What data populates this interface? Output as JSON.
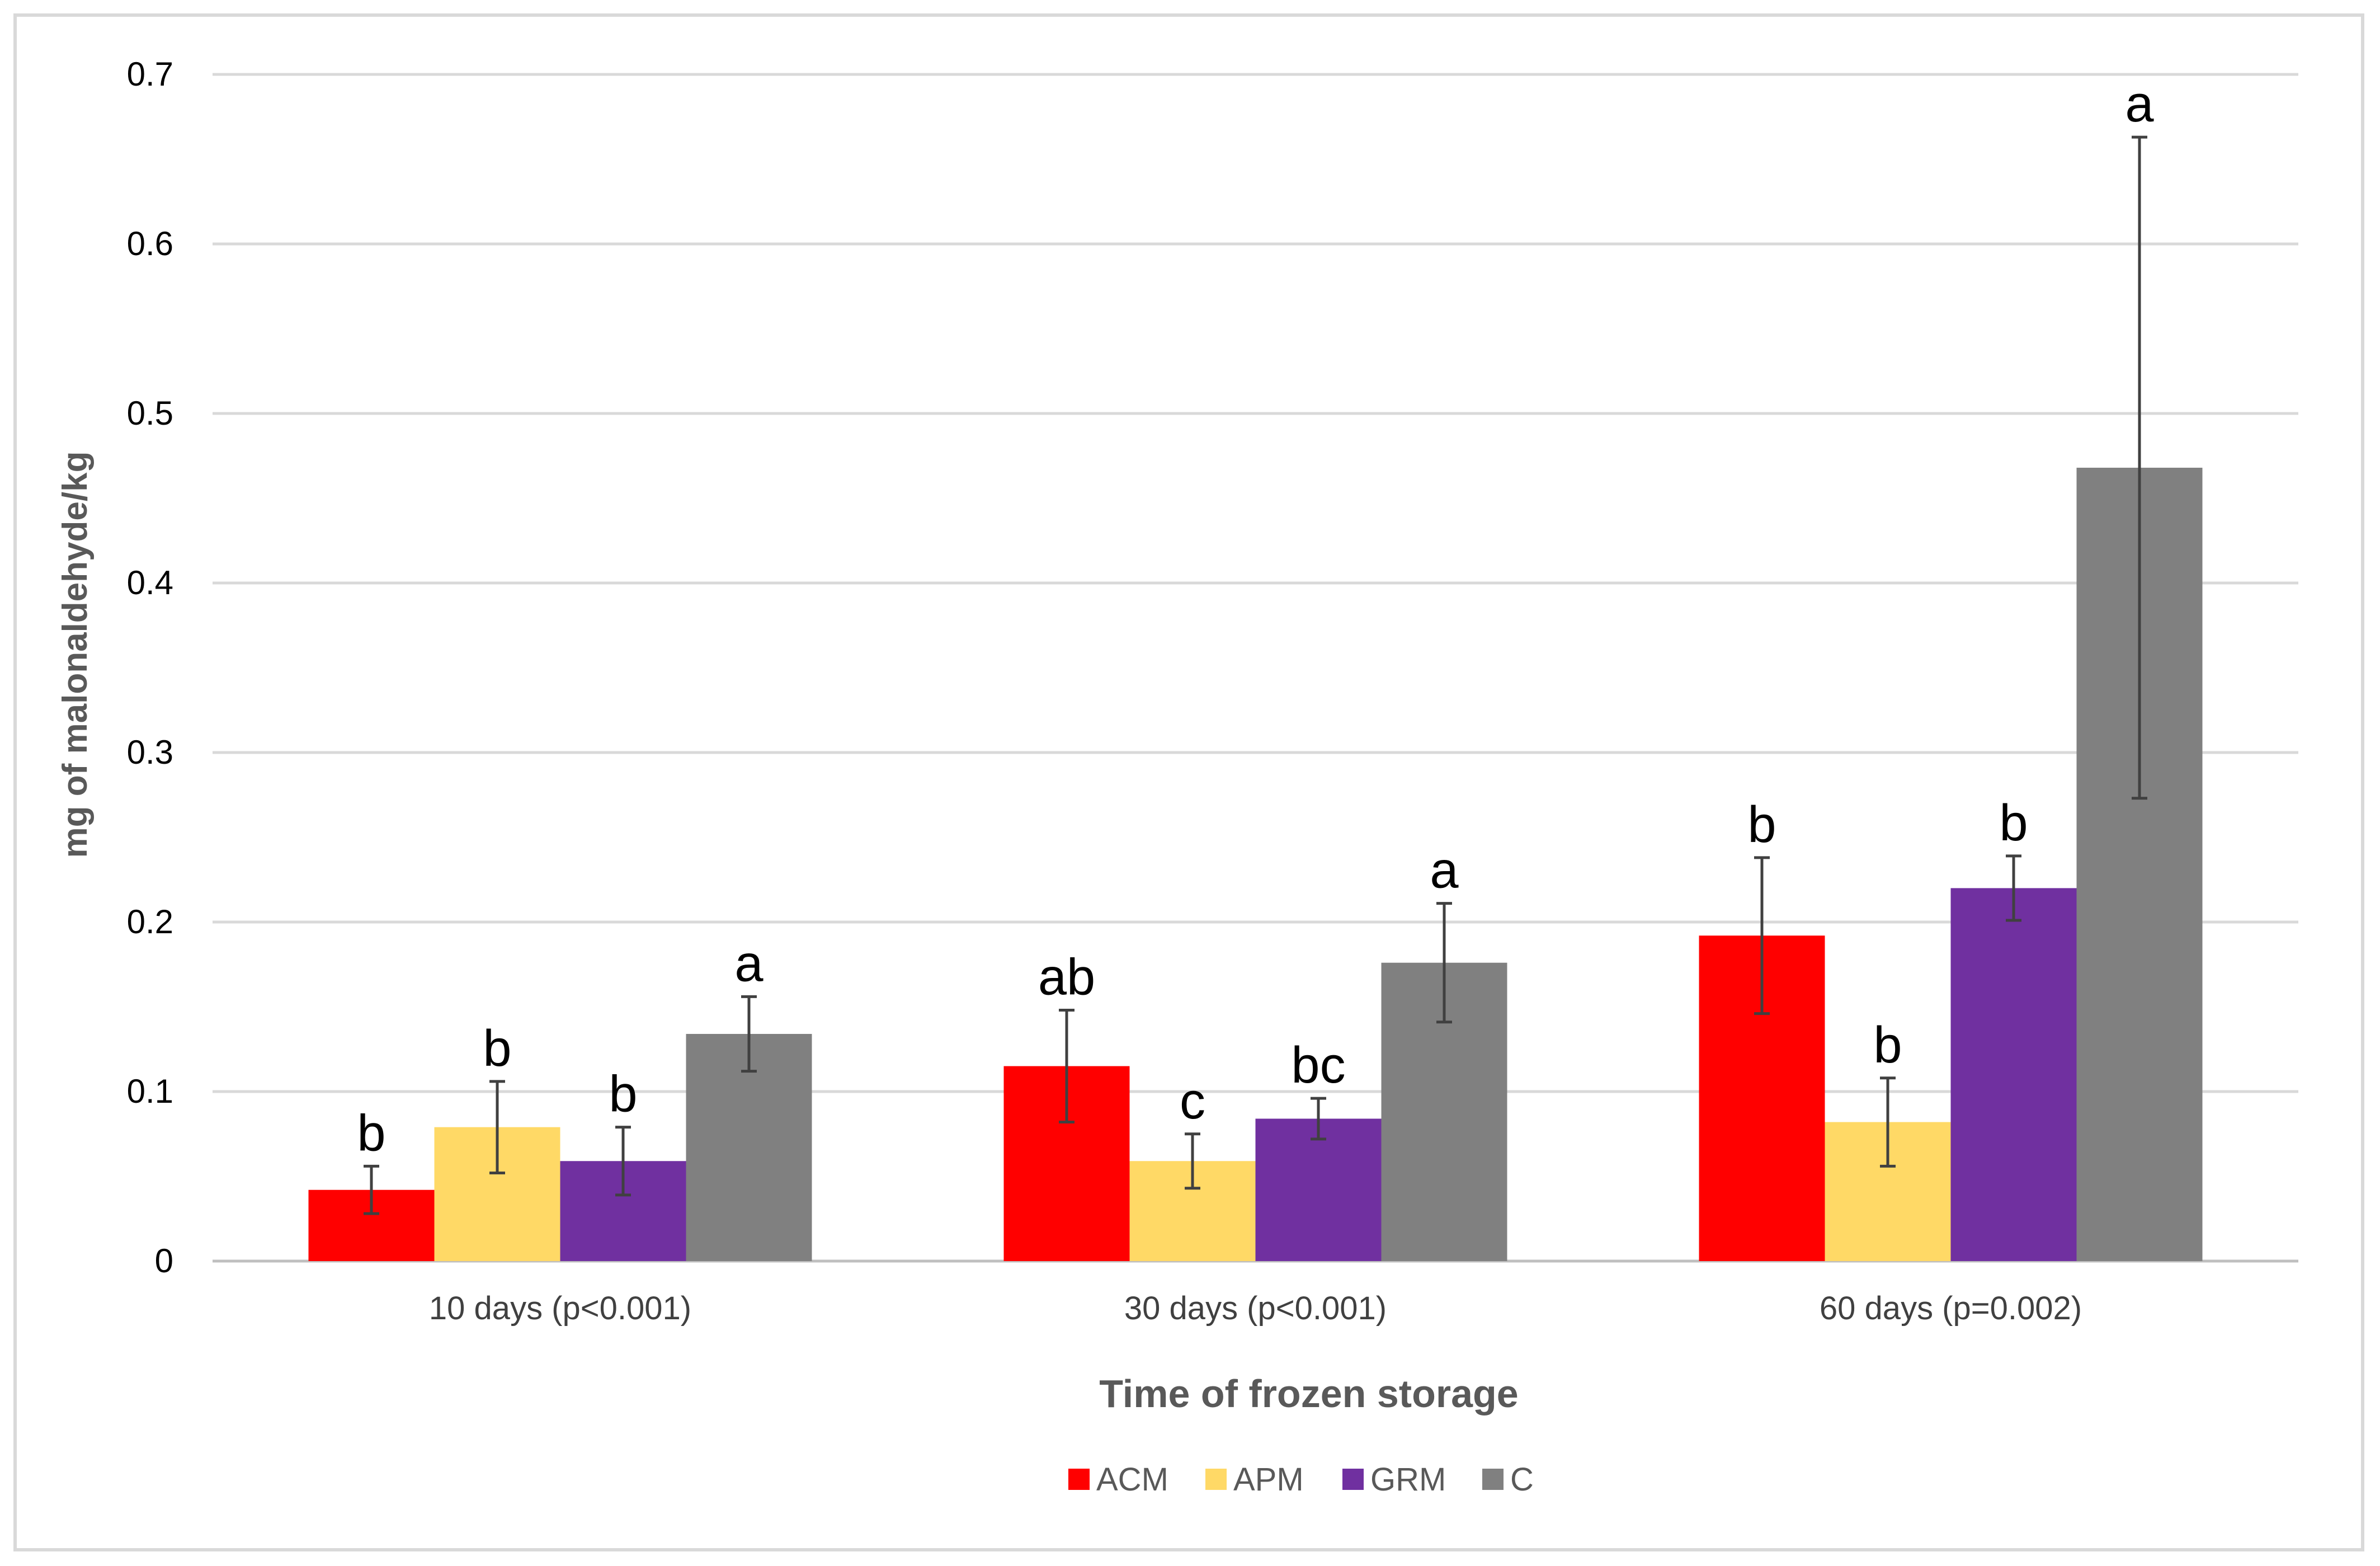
{
  "chart_data": {
    "type": "bar",
    "title": "",
    "xlabel": "Time of frozen storage",
    "ylabel": "mg of malonaldehyde/kg",
    "ylim": [
      0,
      0.7
    ],
    "yticks": [
      "0",
      "0.1",
      "0.2",
      "0.3",
      "0.4",
      "0.5",
      "0.6",
      "0.7"
    ],
    "grid": true,
    "legend_position": "bottom",
    "categories": [
      "10 days (p<0.001)",
      "30 days (p<0.001)",
      "60 days (p=0.002)"
    ],
    "series": [
      {
        "name": "ACM",
        "color": "#ff0000",
        "values": [
          0.042,
          0.115,
          0.192
        ],
        "errors": [
          0.014,
          0.033,
          0.046
        ],
        "letters": [
          "b",
          "ab",
          "b"
        ]
      },
      {
        "name": "APM",
        "color": "#ffd966",
        "values": [
          0.079,
          0.059,
          0.082
        ],
        "errors": [
          0.027,
          0.016,
          0.026
        ],
        "letters": [
          "b",
          "c",
          "b"
        ]
      },
      {
        "name": "GRM",
        "color": "#7030a0",
        "values": [
          0.059,
          0.084,
          0.22
        ],
        "errors": [
          0.02,
          0.012,
          0.019
        ],
        "letters": [
          "b",
          "bc",
          "b"
        ]
      },
      {
        "name": "C",
        "color": "#808080",
        "values": [
          0.134,
          0.176,
          0.468
        ],
        "errors": [
          0.022,
          0.035,
          0.195
        ],
        "letters": [
          "a",
          "a",
          "a"
        ]
      }
    ]
  }
}
